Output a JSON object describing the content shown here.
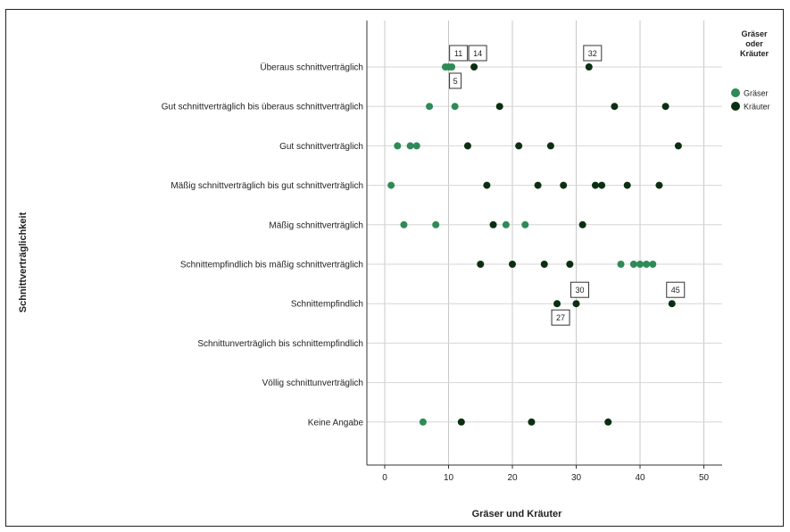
{
  "chart_data": {
    "type": "scatter",
    "title": "",
    "xlabel": "Gräser und Kräuter",
    "ylabel": "Schnittverträglichkeit",
    "xlim": [
      -2,
      52
    ],
    "xticks": [
      0,
      10,
      20,
      30,
      40,
      50
    ],
    "grid": "vertical-major",
    "legend": {
      "title": "Gräser oder Kräuter",
      "placement": "right"
    },
    "categories": [
      "Überaus schnittverträglich",
      "Gut schnittverträglich bis überaus schnittverträglich",
      "Gut schnittverträglich",
      "Mäßig schnittverträglich bis gut schnittverträglich",
      "Mäßig schnittverträglich",
      "Schnittempfindlich bis mäßig schnittverträglich",
      "Schnittempfindlich",
      "Schnittunverträglich bis schnittempfindlich",
      "Völlig schnittunverträglich",
      "Keine Angabe"
    ],
    "series": [
      {
        "name": "Gräser",
        "color": "#2e8b57",
        "points": [
          {
            "x": 9.5,
            "y": "Überaus schnittverträglich"
          },
          {
            "x": 10,
            "y": "Überaus schnittverträglich"
          },
          {
            "x": 10.5,
            "y": "Überaus schnittverträglich"
          },
          {
            "x": 7,
            "y": "Gut schnittverträglich bis überaus schnittverträglich"
          },
          {
            "x": 11,
            "y": "Gut schnittverträglich bis überaus schnittverträglich"
          },
          {
            "x": 2,
            "y": "Gut schnittverträglich"
          },
          {
            "x": 4,
            "y": "Gut schnittverträglich"
          },
          {
            "x": 5,
            "y": "Gut schnittverträglich"
          },
          {
            "x": 1,
            "y": "Mäßig schnittverträglich bis gut schnittverträglich"
          },
          {
            "x": 3,
            "y": "Mäßig schnittverträglich"
          },
          {
            "x": 8,
            "y": "Mäßig schnittverträglich"
          },
          {
            "x": 19,
            "y": "Mäßig schnittverträglich"
          },
          {
            "x": 22,
            "y": "Mäßig schnittverträglich"
          },
          {
            "x": 37,
            "y": "Schnittempfindlich bis mäßig schnittverträglich"
          },
          {
            "x": 39,
            "y": "Schnittempfindlich bis mäßig schnittverträglich"
          },
          {
            "x": 40,
            "y": "Schnittempfindlich bis mäßig schnittverträglich"
          },
          {
            "x": 41,
            "y": "Schnittempfindlich bis mäßig schnittverträglich"
          },
          {
            "x": 42,
            "y": "Schnittempfindlich bis mäßig schnittverträglich"
          },
          {
            "x": 6,
            "y": "Keine Angabe"
          }
        ]
      },
      {
        "name": "Kräuter",
        "color": "#0b2f12",
        "points": [
          {
            "x": 14,
            "y": "Überaus schnittverträglich"
          },
          {
            "x": 32,
            "y": "Überaus schnittverträglich"
          },
          {
            "x": 18,
            "y": "Gut schnittverträglich bis überaus schnittverträglich"
          },
          {
            "x": 36,
            "y": "Gut schnittverträglich bis überaus schnittverträglich"
          },
          {
            "x": 44,
            "y": "Gut schnittverträglich bis überaus schnittverträglich"
          },
          {
            "x": 13,
            "y": "Gut schnittverträglich"
          },
          {
            "x": 21,
            "y": "Gut schnittverträglich"
          },
          {
            "x": 26,
            "y": "Gut schnittverträglich"
          },
          {
            "x": 46,
            "y": "Gut schnittverträglich"
          },
          {
            "x": 16,
            "y": "Mäßig schnittverträglich bis gut schnittverträglich"
          },
          {
            "x": 24,
            "y": "Mäßig schnittverträglich bis gut schnittverträglich"
          },
          {
            "x": 28,
            "y": "Mäßig schnittverträglich bis gut schnittverträglich"
          },
          {
            "x": 33,
            "y": "Mäßig schnittverträglich bis gut schnittverträglich"
          },
          {
            "x": 34,
            "y": "Mäßig schnittverträglich bis gut schnittverträglich"
          },
          {
            "x": 38,
            "y": "Mäßig schnittverträglich bis gut schnittverträglich"
          },
          {
            "x": 43,
            "y": "Mäßig schnittverträglich bis gut schnittverträglich"
          },
          {
            "x": 17,
            "y": "Mäßig schnittverträglich"
          },
          {
            "x": 31,
            "y": "Mäßig schnittverträglich"
          },
          {
            "x": 15,
            "y": "Schnittempfindlich bis mäßig schnittverträglich"
          },
          {
            "x": 20,
            "y": "Schnittempfindlich bis mäßig schnittverträglich"
          },
          {
            "x": 25,
            "y": "Schnittempfindlich bis mäßig schnittverträglich"
          },
          {
            "x": 29,
            "y": "Schnittempfindlich bis mäßig schnittverträglich"
          },
          {
            "x": 27,
            "y": "Schnittempfindlich"
          },
          {
            "x": 30,
            "y": "Schnittempfindlich"
          },
          {
            "x": 45,
            "y": "Schnittempfindlich"
          },
          {
            "x": 12,
            "y": "Keine Angabe"
          },
          {
            "x": 23,
            "y": "Keine Angabe"
          },
          {
            "x": 35,
            "y": "Keine Angabe"
          }
        ]
      }
    ],
    "annotations": [
      {
        "text": "11",
        "x": 11,
        "y": "Überaus schnittverträglich",
        "pos": "above"
      },
      {
        "text": "14",
        "x": 14,
        "y": "Überaus schnittverträglich",
        "pos": "above"
      },
      {
        "text": "32",
        "x": 32,
        "y": "Überaus schnittverträglich",
        "pos": "above"
      },
      {
        "text": "5",
        "x": 10.5,
        "y": "Überaus schnittverträglich",
        "pos": "below"
      },
      {
        "text": "30",
        "x": 30,
        "y": "Schnittempfindlich",
        "pos": "above"
      },
      {
        "text": "45",
        "x": 45,
        "y": "Schnittempfindlich",
        "pos": "above"
      },
      {
        "text": "27",
        "x": 27,
        "y": "Schnittempfindlich",
        "pos": "below"
      }
    ]
  }
}
